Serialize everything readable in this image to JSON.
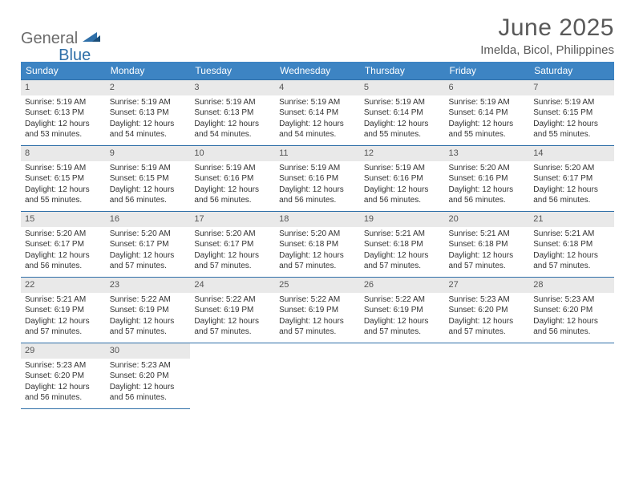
{
  "logo": {
    "word1": "General",
    "word2": "Blue"
  },
  "header": {
    "month": "June 2025",
    "location": "Imelda, Bicol, Philippines"
  },
  "styling": {
    "page_bg": "#ffffff",
    "header_bg": "#3d84c3",
    "header_fg": "#ffffff",
    "daynum_bg": "#e9e9e9",
    "daynum_fg": "#555555",
    "rule_color": "#2f6fa8",
    "text_color": "#333333",
    "title_color": "#595959",
    "logo_gray": "#6b6b6b",
    "logo_blue": "#2f6fa8",
    "font_family": "Arial",
    "title_fontsize_pt": 22,
    "location_fontsize_pt": 11,
    "dayheader_fontsize_pt": 9,
    "cell_fontsize_pt": 7.5
  },
  "dayHeaders": [
    "Sunday",
    "Monday",
    "Tuesday",
    "Wednesday",
    "Thursday",
    "Friday",
    "Saturday"
  ],
  "weeks": [
    [
      {
        "n": "1",
        "sr": "Sunrise: 5:19 AM",
        "ss": "Sunset: 6:13 PM",
        "dl": "Daylight: 12 hours and 53 minutes."
      },
      {
        "n": "2",
        "sr": "Sunrise: 5:19 AM",
        "ss": "Sunset: 6:13 PM",
        "dl": "Daylight: 12 hours and 54 minutes."
      },
      {
        "n": "3",
        "sr": "Sunrise: 5:19 AM",
        "ss": "Sunset: 6:13 PM",
        "dl": "Daylight: 12 hours and 54 minutes."
      },
      {
        "n": "4",
        "sr": "Sunrise: 5:19 AM",
        "ss": "Sunset: 6:14 PM",
        "dl": "Daylight: 12 hours and 54 minutes."
      },
      {
        "n": "5",
        "sr": "Sunrise: 5:19 AM",
        "ss": "Sunset: 6:14 PM",
        "dl": "Daylight: 12 hours and 55 minutes."
      },
      {
        "n": "6",
        "sr": "Sunrise: 5:19 AM",
        "ss": "Sunset: 6:14 PM",
        "dl": "Daylight: 12 hours and 55 minutes."
      },
      {
        "n": "7",
        "sr": "Sunrise: 5:19 AM",
        "ss": "Sunset: 6:15 PM",
        "dl": "Daylight: 12 hours and 55 minutes."
      }
    ],
    [
      {
        "n": "8",
        "sr": "Sunrise: 5:19 AM",
        "ss": "Sunset: 6:15 PM",
        "dl": "Daylight: 12 hours and 55 minutes."
      },
      {
        "n": "9",
        "sr": "Sunrise: 5:19 AM",
        "ss": "Sunset: 6:15 PM",
        "dl": "Daylight: 12 hours and 56 minutes."
      },
      {
        "n": "10",
        "sr": "Sunrise: 5:19 AM",
        "ss": "Sunset: 6:16 PM",
        "dl": "Daylight: 12 hours and 56 minutes."
      },
      {
        "n": "11",
        "sr": "Sunrise: 5:19 AM",
        "ss": "Sunset: 6:16 PM",
        "dl": "Daylight: 12 hours and 56 minutes."
      },
      {
        "n": "12",
        "sr": "Sunrise: 5:19 AM",
        "ss": "Sunset: 6:16 PM",
        "dl": "Daylight: 12 hours and 56 minutes."
      },
      {
        "n": "13",
        "sr": "Sunrise: 5:20 AM",
        "ss": "Sunset: 6:16 PM",
        "dl": "Daylight: 12 hours and 56 minutes."
      },
      {
        "n": "14",
        "sr": "Sunrise: 5:20 AM",
        "ss": "Sunset: 6:17 PM",
        "dl": "Daylight: 12 hours and 56 minutes."
      }
    ],
    [
      {
        "n": "15",
        "sr": "Sunrise: 5:20 AM",
        "ss": "Sunset: 6:17 PM",
        "dl": "Daylight: 12 hours and 56 minutes."
      },
      {
        "n": "16",
        "sr": "Sunrise: 5:20 AM",
        "ss": "Sunset: 6:17 PM",
        "dl": "Daylight: 12 hours and 57 minutes."
      },
      {
        "n": "17",
        "sr": "Sunrise: 5:20 AM",
        "ss": "Sunset: 6:17 PM",
        "dl": "Daylight: 12 hours and 57 minutes."
      },
      {
        "n": "18",
        "sr": "Sunrise: 5:20 AM",
        "ss": "Sunset: 6:18 PM",
        "dl": "Daylight: 12 hours and 57 minutes."
      },
      {
        "n": "19",
        "sr": "Sunrise: 5:21 AM",
        "ss": "Sunset: 6:18 PM",
        "dl": "Daylight: 12 hours and 57 minutes."
      },
      {
        "n": "20",
        "sr": "Sunrise: 5:21 AM",
        "ss": "Sunset: 6:18 PM",
        "dl": "Daylight: 12 hours and 57 minutes."
      },
      {
        "n": "21",
        "sr": "Sunrise: 5:21 AM",
        "ss": "Sunset: 6:18 PM",
        "dl": "Daylight: 12 hours and 57 minutes."
      }
    ],
    [
      {
        "n": "22",
        "sr": "Sunrise: 5:21 AM",
        "ss": "Sunset: 6:19 PM",
        "dl": "Daylight: 12 hours and 57 minutes."
      },
      {
        "n": "23",
        "sr": "Sunrise: 5:22 AM",
        "ss": "Sunset: 6:19 PM",
        "dl": "Daylight: 12 hours and 57 minutes."
      },
      {
        "n": "24",
        "sr": "Sunrise: 5:22 AM",
        "ss": "Sunset: 6:19 PM",
        "dl": "Daylight: 12 hours and 57 minutes."
      },
      {
        "n": "25",
        "sr": "Sunrise: 5:22 AM",
        "ss": "Sunset: 6:19 PM",
        "dl": "Daylight: 12 hours and 57 minutes."
      },
      {
        "n": "26",
        "sr": "Sunrise: 5:22 AM",
        "ss": "Sunset: 6:19 PM",
        "dl": "Daylight: 12 hours and 57 minutes."
      },
      {
        "n": "27",
        "sr": "Sunrise: 5:23 AM",
        "ss": "Sunset: 6:20 PM",
        "dl": "Daylight: 12 hours and 57 minutes."
      },
      {
        "n": "28",
        "sr": "Sunrise: 5:23 AM",
        "ss": "Sunset: 6:20 PM",
        "dl": "Daylight: 12 hours and 56 minutes."
      }
    ],
    [
      {
        "n": "29",
        "sr": "Sunrise: 5:23 AM",
        "ss": "Sunset: 6:20 PM",
        "dl": "Daylight: 12 hours and 56 minutes."
      },
      {
        "n": "30",
        "sr": "Sunrise: 5:23 AM",
        "ss": "Sunset: 6:20 PM",
        "dl": "Daylight: 12 hours and 56 minutes."
      },
      null,
      null,
      null,
      null,
      null
    ]
  ]
}
